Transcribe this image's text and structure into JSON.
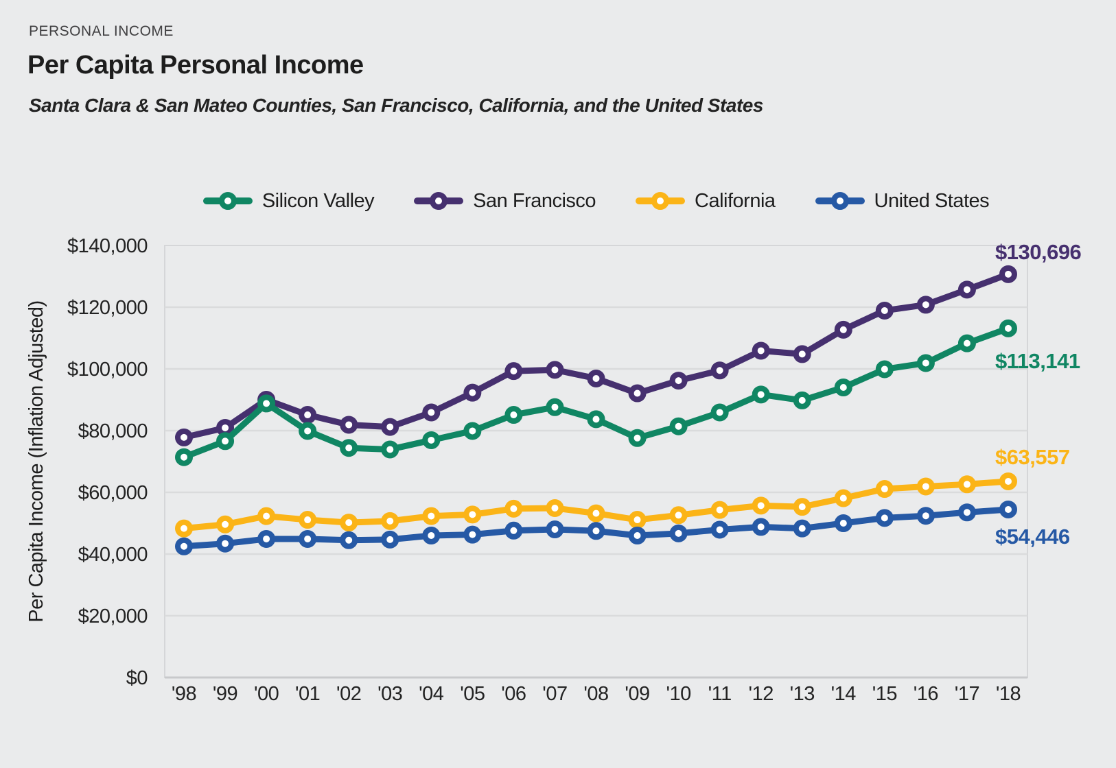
{
  "page": {
    "background": "#eaebec"
  },
  "header": {
    "eyebrow": "PERSONAL INCOME",
    "title": "Per Capita Personal Income",
    "subtitle": "Santa Clara & San Mateo Counties, San Francisco, California, and the United States"
  },
  "chart_data": {
    "type": "line",
    "title": "Per Capita Personal Income",
    "xlabel": "",
    "ylabel": "Per Capita Income (Inflation Adjusted)",
    "ylim": [
      0,
      140000
    ],
    "ytick_step": 20000,
    "ytick_labels": [
      "$0",
      "$20,000",
      "$40,000",
      "$60,000",
      "$80,000",
      "$100,000",
      "$120,000",
      "$140,000"
    ],
    "grid": true,
    "legend_position": "top",
    "categories": [
      "'98",
      "'99",
      "'00",
      "'01",
      "'02",
      "'03",
      "'04",
      "'05",
      "'06",
      "'07",
      "'08",
      "'09",
      "'10",
      "'11",
      "'12",
      "'13",
      "'14",
      "'15",
      "'16",
      "'17",
      "'18"
    ],
    "series": [
      {
        "name": "San Francisco",
        "color": "#46306f",
        "end_label": "$130,696",
        "values": [
          77800,
          80900,
          90000,
          85100,
          81900,
          81200,
          85900,
          92300,
          99300,
          99700,
          96900,
          92100,
          96200,
          99500,
          105900,
          104800,
          112700,
          118900,
          120800,
          125700,
          130696
        ]
      },
      {
        "name": "Silicon Valley",
        "color": "#108663",
        "end_label": "$113,141",
        "values": [
          71400,
          76600,
          88800,
          79900,
          74400,
          73900,
          76900,
          79900,
          85100,
          87600,
          83700,
          77600,
          81400,
          85900,
          91700,
          89800,
          94000,
          99900,
          101900,
          108300,
          113141
        ]
      },
      {
        "name": "California",
        "color": "#fbb417",
        "end_label": "$63,557",
        "values": [
          48300,
          49600,
          52300,
          51100,
          50200,
          50700,
          52300,
          52800,
          54700,
          54900,
          53200,
          51100,
          52600,
          54300,
          55700,
          55300,
          58100,
          61100,
          61900,
          62600,
          63557
        ]
      },
      {
        "name": "United States",
        "color": "#2659a5",
        "end_label": "$54,446",
        "values": [
          42500,
          43400,
          44900,
          44900,
          44500,
          44700,
          46000,
          46300,
          47600,
          48000,
          47500,
          46000,
          46700,
          47900,
          48800,
          48300,
          50000,
          51700,
          52400,
          53500,
          54446
        ]
      }
    ],
    "legend_order": [
      "Silicon Valley",
      "San Francisco",
      "California",
      "United States"
    ],
    "end_label_positions": {
      "San Francisco": 378,
      "Silicon Valley": 537,
      "California": 677,
      "United States": 793
    },
    "colors": {
      "gridline": "#dadbdc",
      "frame": "#d5d6d8",
      "axis_bottom": "#c8c9cb",
      "tick_text": "#232323"
    }
  }
}
